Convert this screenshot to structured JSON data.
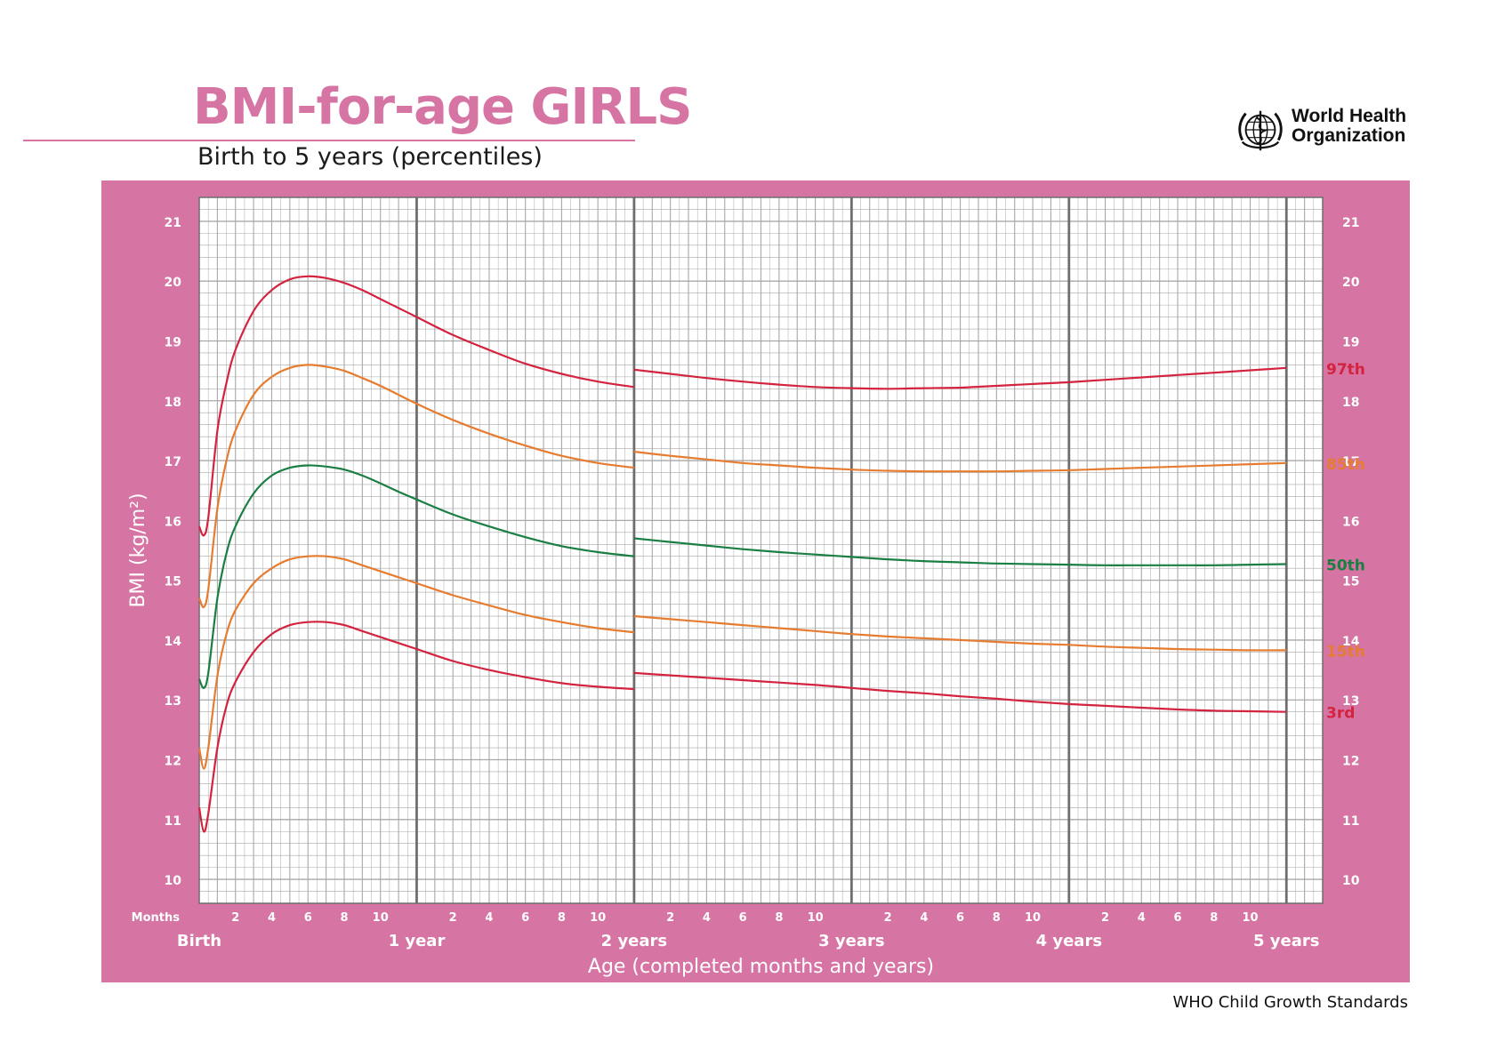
{
  "header": {
    "title": "BMI-for-age GIRLS",
    "subtitle": "Birth to 5 years (percentiles)"
  },
  "logo": {
    "icon": "who-emblem-icon",
    "name_line1": "World Health",
    "name_line2": "Organization"
  },
  "footer": {
    "text": "WHO Child Growth Standards"
  },
  "colors": {
    "brand_pink": "#d674a3",
    "p3": "#d3233f",
    "p15": "#e67c30",
    "p50": "#1b7f44",
    "p85": "#e67c30",
    "p97": "#d3233f",
    "grid": "#a8a8a8",
    "grid_major": "#6e6e6e"
  },
  "chart_data": {
    "type": "line",
    "ylabel": "BMI (kg/m²)",
    "xlabel": "Age (completed months and years)",
    "months_label": "Months",
    "xlim": [
      0,
      62
    ],
    "ylim": [
      9.6,
      21.4
    ],
    "y_ticks": [
      10,
      11,
      12,
      13,
      14,
      15,
      16,
      17,
      18,
      19,
      20,
      21
    ],
    "x_month_ticks": [
      2,
      4,
      6,
      8,
      10
    ],
    "x_year_labels": [
      {
        "month": 0,
        "label": "Birth"
      },
      {
        "month": 12,
        "label": "1 year"
      },
      {
        "month": 24,
        "label": "2 years"
      },
      {
        "month": 36,
        "label": "3 years"
      },
      {
        "month": 48,
        "label": "4 years"
      },
      {
        "month": 60,
        "label": "5 years"
      }
    ],
    "grid": true,
    "series": [
      {
        "name": "3rd",
        "color_key": "p3",
        "segments": [
          {
            "x": [
              0,
              0.25,
              0.5,
              1,
              1.5,
              2,
              3,
              4,
              5,
              6,
              7,
              8,
              9,
              10,
              11,
              12,
              14,
              16,
              18,
              20,
              22,
              24
            ],
            "y": [
              11.2,
              10.8,
              11.1,
              12.2,
              12.9,
              13.3,
              13.8,
              14.1,
              14.25,
              14.3,
              14.3,
              14.25,
              14.15,
              14.05,
              13.95,
              13.85,
              13.65,
              13.5,
              13.38,
              13.28,
              13.22,
              13.18
            ]
          },
          {
            "x": [
              24,
              26,
              28,
              30,
              32,
              34,
              36,
              38,
              40,
              42,
              44,
              46,
              48,
              50,
              52,
              54,
              56,
              58,
              60
            ],
            "y": [
              13.45,
              13.41,
              13.37,
              13.33,
              13.29,
              13.25,
              13.2,
              13.15,
              13.11,
              13.06,
              13.02,
              12.97,
              12.93,
              12.9,
              12.87,
              12.84,
              12.82,
              12.81,
              12.8
            ]
          }
        ]
      },
      {
        "name": "15th",
        "color_key": "p15",
        "segments": [
          {
            "x": [
              0,
              0.25,
              0.5,
              1,
              1.5,
              2,
              3,
              4,
              5,
              6,
              7,
              8,
              9,
              10,
              11,
              12,
              14,
              16,
              18,
              20,
              22,
              24
            ],
            "y": [
              12.2,
              11.85,
              12.2,
              13.4,
              14.1,
              14.5,
              14.95,
              15.2,
              15.35,
              15.4,
              15.4,
              15.35,
              15.25,
              15.15,
              15.05,
              14.95,
              14.75,
              14.58,
              14.42,
              14.3,
              14.2,
              14.13
            ]
          },
          {
            "x": [
              24,
              26,
              28,
              30,
              32,
              34,
              36,
              38,
              40,
              42,
              44,
              46,
              48,
              50,
              52,
              54,
              56,
              58,
              60
            ],
            "y": [
              14.4,
              14.35,
              14.3,
              14.25,
              14.2,
              14.15,
              14.1,
              14.06,
              14.03,
              14.0,
              13.97,
              13.94,
              13.92,
              13.89,
              13.87,
              13.85,
              13.84,
              13.83,
              13.83
            ]
          }
        ]
      },
      {
        "name": "50th",
        "color_key": "p50",
        "segments": [
          {
            "x": [
              0,
              0.25,
              0.5,
              1,
              1.5,
              2,
              3,
              4,
              5,
              6,
              7,
              8,
              9,
              10,
              11,
              12,
              14,
              16,
              18,
              20,
              22,
              24
            ],
            "y": [
              13.35,
              13.2,
              13.45,
              14.7,
              15.45,
              15.9,
              16.45,
              16.75,
              16.88,
              16.92,
              16.9,
              16.85,
              16.75,
              16.62,
              16.48,
              16.35,
              16.1,
              15.9,
              15.72,
              15.57,
              15.47,
              15.4
            ]
          },
          {
            "x": [
              24,
              26,
              28,
              30,
              32,
              34,
              36,
              38,
              40,
              42,
              44,
              46,
              48,
              50,
              52,
              54,
              56,
              58,
              60
            ],
            "y": [
              15.7,
              15.64,
              15.58,
              15.52,
              15.47,
              15.43,
              15.39,
              15.35,
              15.32,
              15.3,
              15.28,
              15.27,
              15.26,
              15.25,
              15.25,
              15.25,
              15.25,
              15.26,
              15.27
            ]
          }
        ]
      },
      {
        "name": "85th",
        "color_key": "p85",
        "segments": [
          {
            "x": [
              0,
              0.25,
              0.5,
              1,
              1.5,
              2,
              3,
              4,
              5,
              6,
              7,
              8,
              9,
              10,
              11,
              12,
              14,
              16,
              18,
              20,
              22,
              24
            ],
            "y": [
              14.7,
              14.55,
              14.85,
              16.2,
              17.0,
              17.5,
              18.1,
              18.4,
              18.55,
              18.6,
              18.57,
              18.5,
              18.38,
              18.25,
              18.1,
              17.95,
              17.68,
              17.45,
              17.25,
              17.08,
              16.96,
              16.88
            ]
          },
          {
            "x": [
              24,
              26,
              28,
              30,
              32,
              34,
              36,
              38,
              40,
              42,
              44,
              46,
              48,
              50,
              52,
              54,
              56,
              58,
              60
            ],
            "y": [
              17.15,
              17.08,
              17.02,
              16.96,
              16.92,
              16.88,
              16.85,
              16.83,
              16.82,
              16.82,
              16.82,
              16.83,
              16.84,
              16.86,
              16.88,
              16.9,
              16.92,
              16.94,
              16.96
            ]
          }
        ]
      },
      {
        "name": "97th",
        "color_key": "p97",
        "segments": [
          {
            "x": [
              0,
              0.25,
              0.5,
              1,
              1.5,
              2,
              3,
              4,
              5,
              6,
              7,
              8,
              9,
              10,
              11,
              12,
              14,
              16,
              18,
              20,
              22,
              24
            ],
            "y": [
              15.9,
              15.75,
              16.05,
              17.5,
              18.3,
              18.85,
              19.5,
              19.85,
              20.03,
              20.08,
              20.05,
              19.97,
              19.85,
              19.7,
              19.55,
              19.4,
              19.1,
              18.85,
              18.62,
              18.45,
              18.32,
              18.23
            ]
          },
          {
            "x": [
              24,
              26,
              28,
              30,
              32,
              34,
              36,
              38,
              40,
              42,
              44,
              46,
              48,
              50,
              52,
              54,
              56,
              58,
              60
            ],
            "y": [
              18.52,
              18.45,
              18.38,
              18.32,
              18.27,
              18.23,
              18.21,
              18.2,
              18.21,
              18.22,
              18.25,
              18.28,
              18.31,
              18.35,
              18.39,
              18.43,
              18.47,
              18.51,
              18.55
            ]
          }
        ]
      }
    ]
  }
}
